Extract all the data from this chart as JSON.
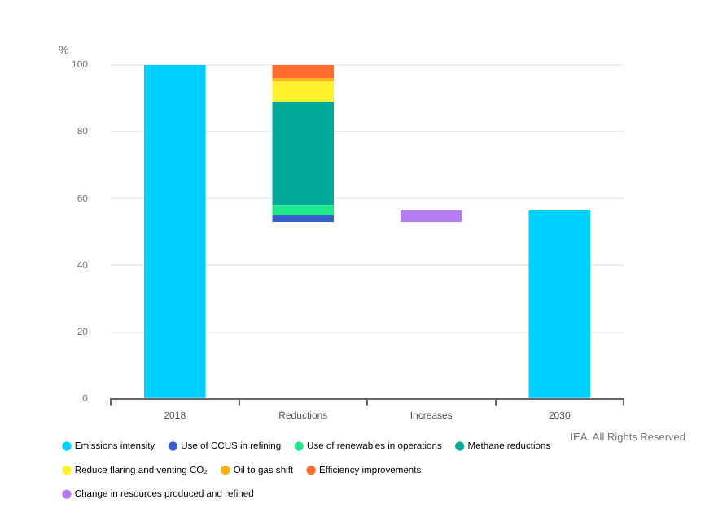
{
  "chart_data": {
    "type": "bar",
    "ylabel": "%",
    "categories": [
      "2018",
      "Reductions",
      "Increases",
      "2030"
    ],
    "series": [
      {
        "name": "Emissions intensity",
        "color": "#00d0ff",
        "values": [
          100,
          null,
          null,
          56.5
        ]
      },
      {
        "name": "Use of CCUS in refining",
        "color": "#3a5fcf",
        "values": [
          null,
          2,
          null,
          null
        ],
        "base": [
          null,
          53,
          null,
          null
        ]
      },
      {
        "name": "Use of renewables in operations",
        "color": "#1de98b",
        "values": [
          null,
          3,
          null,
          null
        ],
        "base": [
          null,
          55,
          null,
          null
        ]
      },
      {
        "name": "Methane reductions",
        "color": "#00ab9c",
        "values": [
          null,
          31,
          null,
          null
        ],
        "base": [
          null,
          58,
          null,
          null
        ]
      },
      {
        "name": "Reduce flaring and venting CO₂",
        "color": "#fff22d",
        "values": [
          null,
          6,
          null,
          null
        ],
        "base": [
          null,
          89,
          null,
          null
        ]
      },
      {
        "name": "Oil to gas shift",
        "color": "#ffb000",
        "values": [
          null,
          1,
          null,
          null
        ],
        "base": [
          null,
          95,
          null,
          null
        ]
      },
      {
        "name": "Efficiency improvements",
        "color": "#ff6b2c",
        "values": [
          null,
          4,
          null,
          null
        ],
        "base": [
          null,
          96,
          null,
          null
        ]
      },
      {
        "name": "Change in resources produced and refined",
        "color": "#b57bf0",
        "values": [
          null,
          null,
          3.5,
          null
        ],
        "base": [
          null,
          null,
          53,
          null
        ]
      }
    ],
    "ylim": [
      0,
      100
    ],
    "yticks": [
      0,
      20,
      40,
      60,
      80,
      100
    ],
    "grid": "y",
    "legend": "bottom",
    "annotations": [
      "IEA. All Rights Reserved"
    ]
  }
}
